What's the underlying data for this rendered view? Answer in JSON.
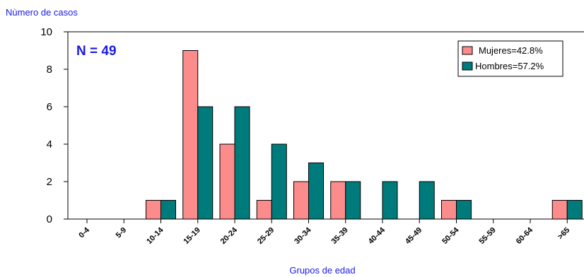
{
  "chart_data": {
    "type": "bar",
    "ylabel": "Nùmero de casos",
    "xlabel": "Grupos de edad",
    "annotation": "N = 49",
    "ylim": [
      0,
      10
    ],
    "yticks": [
      0,
      2,
      4,
      6,
      8,
      10
    ],
    "categories": [
      "0-4",
      "5-9",
      "10-14",
      "15-19",
      "20-24",
      "25-29",
      "30-34",
      "35-39",
      "40-44",
      "45-49",
      "50-54",
      "55-59",
      "60-64",
      ">65"
    ],
    "series": [
      {
        "name": "Mujeres=42.8%",
        "color": "#fc8c8c",
        "values": [
          0,
          0,
          1,
          9,
          4,
          1,
          2,
          2,
          0,
          0,
          1,
          0,
          0,
          1
        ]
      },
      {
        "name": "Hombres=57.2%",
        "color": "#007b7b",
        "values": [
          0,
          0,
          1,
          6,
          6,
          4,
          3,
          2,
          2,
          2,
          1,
          0,
          0,
          1
        ]
      }
    ],
    "legend_position": "top-right",
    "grid": false,
    "colors": {
      "axis_title": "#1a1ae6",
      "annotation": "#1a1ae6"
    }
  }
}
